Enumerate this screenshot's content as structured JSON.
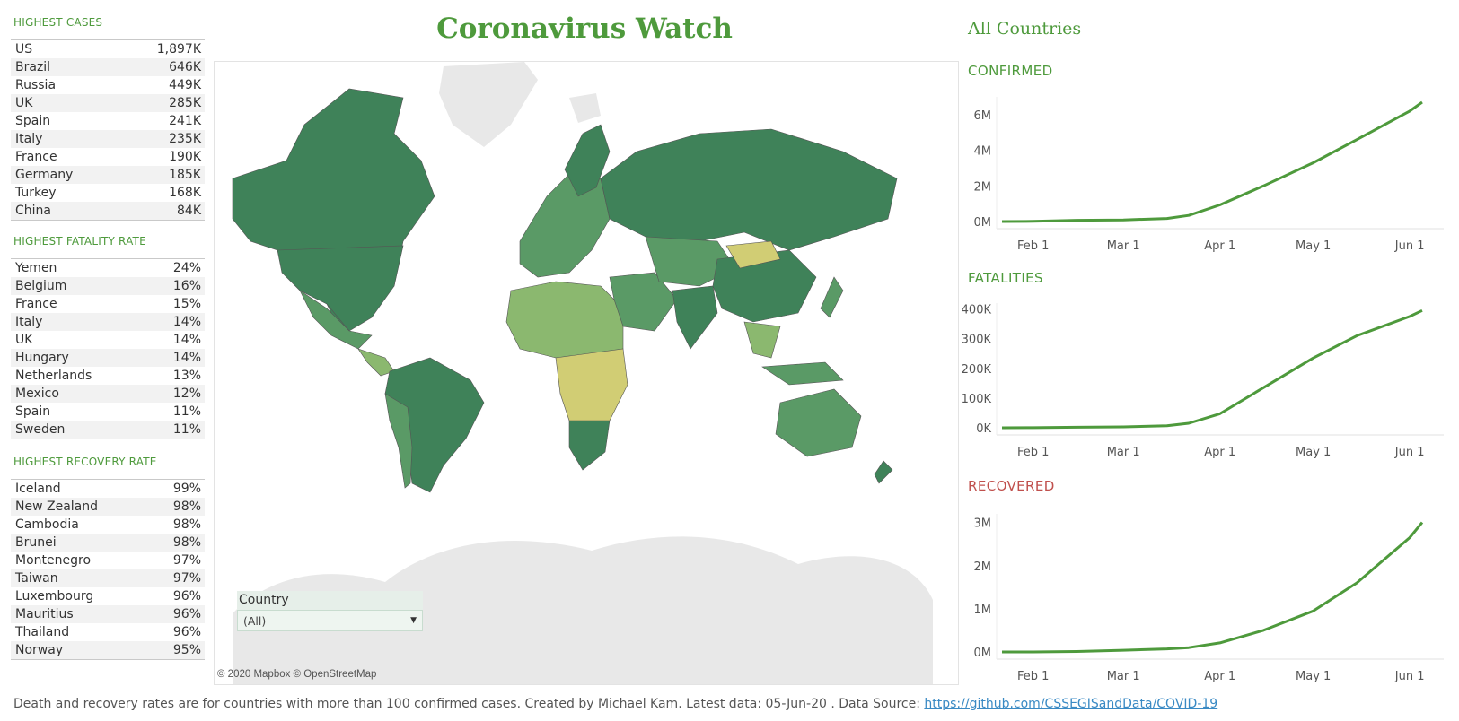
{
  "title": "Coronavirus Watch",
  "tables": {
    "highest_cases": {
      "title": "HIGHEST CASES",
      "rows": [
        {
          "country": "US",
          "value": "1,897K"
        },
        {
          "country": "Brazil",
          "value": "646K"
        },
        {
          "country": "Russia",
          "value": "449K"
        },
        {
          "country": "UK",
          "value": "285K"
        },
        {
          "country": "Spain",
          "value": "241K"
        },
        {
          "country": "Italy",
          "value": "235K"
        },
        {
          "country": "France",
          "value": "190K"
        },
        {
          "country": "Germany",
          "value": "185K"
        },
        {
          "country": "Turkey",
          "value": "168K"
        },
        {
          "country": "China",
          "value": "84K"
        }
      ]
    },
    "highest_fatality": {
      "title": "HIGHEST FATALITY RATE",
      "rows": [
        {
          "country": "Yemen",
          "value": "24%"
        },
        {
          "country": "Belgium",
          "value": "16%"
        },
        {
          "country": "France",
          "value": "15%"
        },
        {
          "country": "Italy",
          "value": "14%"
        },
        {
          "country": "UK",
          "value": "14%"
        },
        {
          "country": "Hungary",
          "value": "14%"
        },
        {
          "country": "Netherlands",
          "value": "13%"
        },
        {
          "country": "Mexico",
          "value": "12%"
        },
        {
          "country": "Spain",
          "value": "11%"
        },
        {
          "country": "Sweden",
          "value": "11%"
        }
      ]
    },
    "highest_recovery": {
      "title": "HIGHEST RECOVERY RATE",
      "rows": [
        {
          "country": "Iceland",
          "value": "99%"
        },
        {
          "country": "New Zealand",
          "value": "98%"
        },
        {
          "country": "Cambodia",
          "value": "98%"
        },
        {
          "country": "Brunei",
          "value": "98%"
        },
        {
          "country": "Montenegro",
          "value": "97%"
        },
        {
          "country": "Taiwan",
          "value": "97%"
        },
        {
          "country": "Luxembourg",
          "value": "96%"
        },
        {
          "country": "Mauritius",
          "value": "96%"
        },
        {
          "country": "Thailand",
          "value": "96%"
        },
        {
          "country": "Norway",
          "value": "95%"
        }
      ]
    }
  },
  "map": {
    "attribution": "© 2020 Mapbox © OpenStreetMap",
    "filter": {
      "label": "Country",
      "selected": "(All)"
    },
    "colors": {
      "dark": "#3f8259",
      "mid": "#5a9a66",
      "light": "#8bb86f",
      "yellow": "#d1cd74",
      "land": "#e8e8e8"
    }
  },
  "right_title": "All Countries",
  "colors": {
    "accent": "#4e9a3c",
    "recovered": "#c0504d",
    "line": "#4e9a3c"
  },
  "chart_data": [
    {
      "type": "line",
      "title": "CONFIRMED",
      "title_color": "#4e9a3c",
      "x": [
        "Jan 22",
        "Feb 1",
        "Feb 15",
        "Mar 1",
        "Mar 15",
        "Mar 22",
        "Apr 1",
        "Apr 15",
        "May 1",
        "May 15",
        "Jun 1",
        "Jun 5"
      ],
      "series": [
        {
          "values": [
            0.0006,
            0.012,
            0.07,
            0.09,
            0.17,
            0.34,
            0.93,
            2.0,
            3.3,
            4.6,
            6.2,
            6.7
          ]
        }
      ],
      "x_ticks": [
        "Feb 1",
        "Mar 1",
        "Apr 1",
        "May 1",
        "Jun 1"
      ],
      "y_ticks": [
        0,
        2,
        4,
        6
      ],
      "y_tick_labels": [
        "0M",
        "2M",
        "4M",
        "6M"
      ],
      "ylim": [
        0,
        7
      ]
    },
    {
      "type": "line",
      "title": "FATALITIES",
      "title_color": "#4e9a3c",
      "x": [
        "Jan 22",
        "Feb 1",
        "Feb 15",
        "Mar 1",
        "Mar 15",
        "Mar 22",
        "Apr 1",
        "Apr 15",
        "May 1",
        "May 15",
        "Jun 1",
        "Jun 5"
      ],
      "series": [
        {
          "values": [
            0,
            0.3,
            1.7,
            3.0,
            6.5,
            15,
            47,
            135,
            235,
            310,
            375,
            395
          ]
        }
      ],
      "x_ticks": [
        "Feb 1",
        "Mar 1",
        "Apr 1",
        "May 1",
        "Jun 1"
      ],
      "y_ticks": [
        0,
        100,
        200,
        300,
        400
      ],
      "y_tick_labels": [
        "0K",
        "100K",
        "200K",
        "300K",
        "400K"
      ],
      "ylim": [
        0,
        420
      ]
    },
    {
      "type": "line",
      "title": "RECOVERED",
      "title_color": "#c0504d",
      "x": [
        "Jan 22",
        "Feb 1",
        "Feb 15",
        "Mar 1",
        "Mar 15",
        "Mar 22",
        "Apr 1",
        "Apr 15",
        "May 1",
        "May 15",
        "Jun 1",
        "Jun 5"
      ],
      "series": [
        {
          "values": [
            0,
            0.001,
            0.01,
            0.04,
            0.07,
            0.1,
            0.21,
            0.5,
            0.95,
            1.6,
            2.65,
            3.0
          ]
        }
      ],
      "x_ticks": [
        "Feb 1",
        "Mar 1",
        "Apr 1",
        "May 1",
        "Jun 1"
      ],
      "y_ticks": [
        0,
        1,
        2,
        3
      ],
      "y_tick_labels": [
        "0M",
        "1M",
        "2M",
        "3M"
      ],
      "ylim": [
        0,
        3.2
      ]
    }
  ],
  "footer": {
    "text": "Death and recovery rates are for countries with more than 100 confirmed cases. Created by Michael Kam. Latest data: 05-Jun-20 . Data Source: ",
    "link": "https://github.com/CSSEGISandData/COVID-19"
  }
}
